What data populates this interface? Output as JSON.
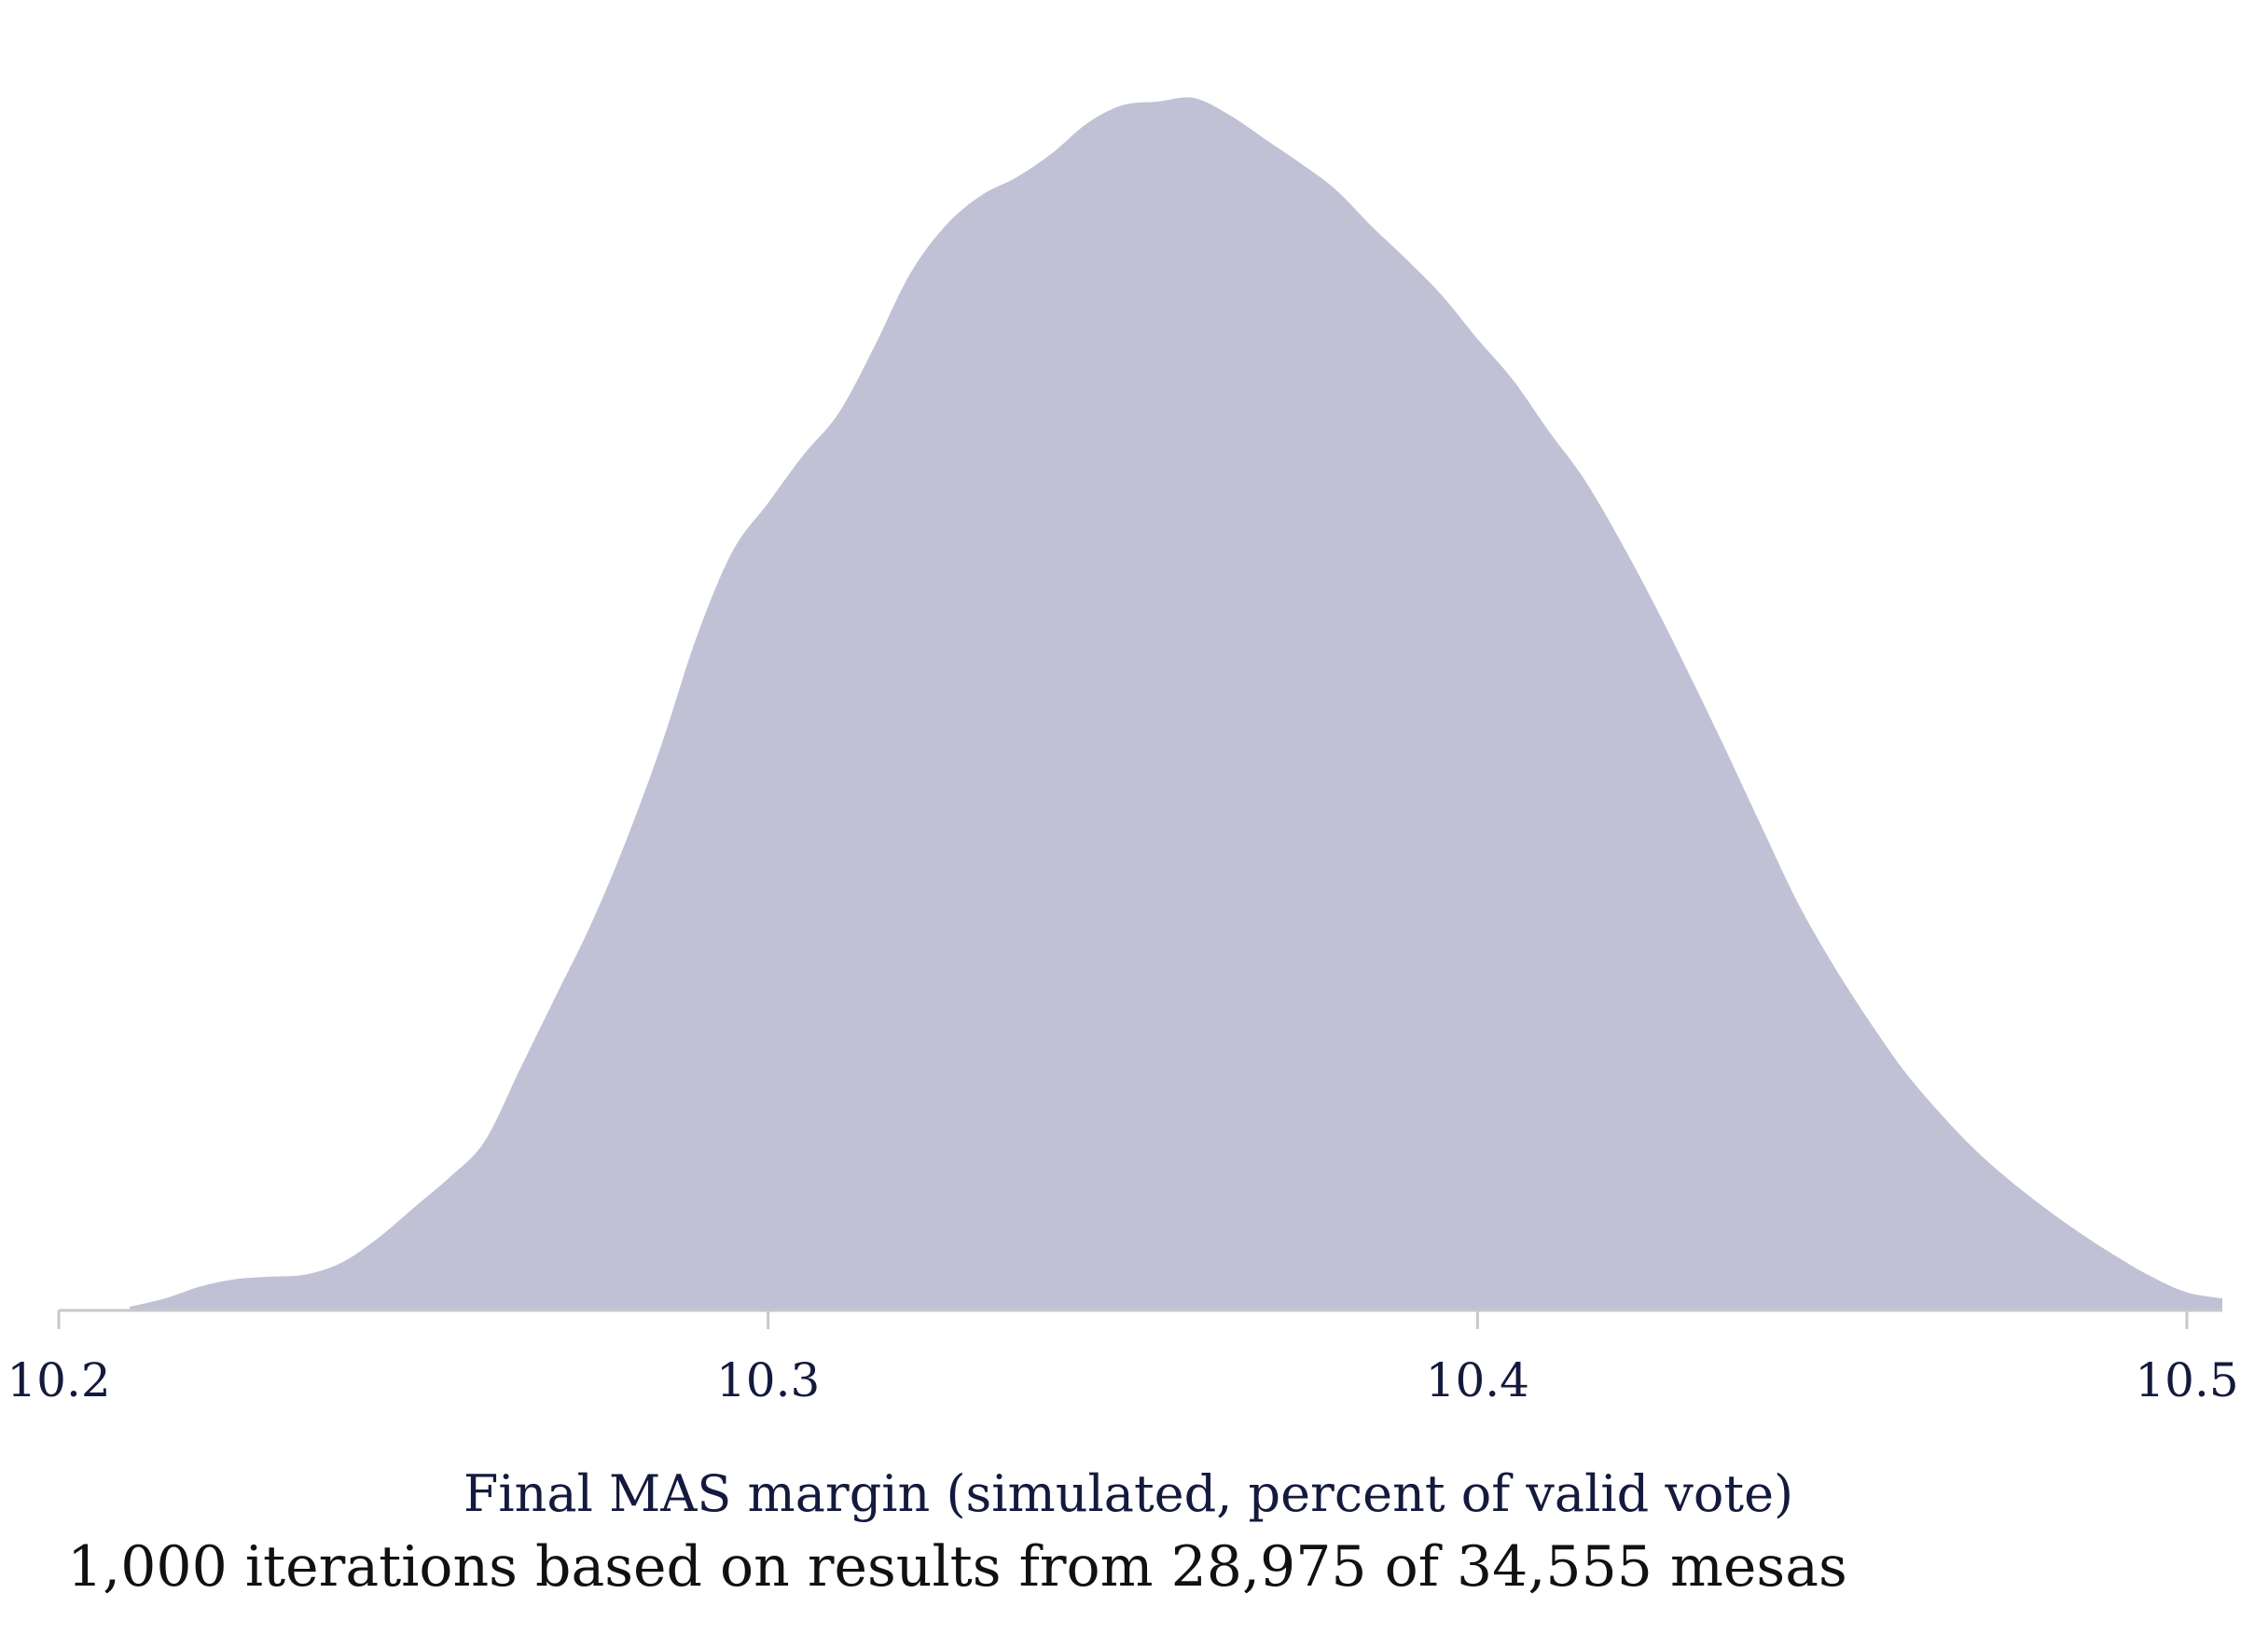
{
  "chart_data": {
    "type": "area",
    "xlabel": "Final MAS margin (simulated, percent of valid vote)",
    "ylabel": "",
    "caption": "1,000 iterations based on results from 28,975 of 34,555 mesas",
    "xlim": [
      10.2,
      10.505
    ],
    "ylim": [
      0,
      1
    ],
    "grid": false,
    "legend": "none",
    "fill_color": "#c0c1d5",
    "axis_color": "#c8c8c8",
    "text_color": "#141a3d",
    "x_ticks": [
      {
        "value": 10.2,
        "label": "10.2"
      },
      {
        "value": 10.3,
        "label": "10.3"
      },
      {
        "value": 10.4,
        "label": "10.4"
      },
      {
        "value": 10.5,
        "label": "10.5"
      }
    ],
    "x": [
      10.21,
      10.215,
      10.22,
      10.225,
      10.23,
      10.235,
      10.24,
      10.245,
      10.25,
      10.255,
      10.26,
      10.265,
      10.27,
      10.275,
      10.28,
      10.285,
      10.29,
      10.295,
      10.3,
      10.305,
      10.31,
      10.315,
      10.32,
      10.325,
      10.33,
      10.335,
      10.34,
      10.345,
      10.35,
      10.355,
      10.36,
      10.365,
      10.37,
      10.375,
      10.38,
      10.385,
      10.39,
      10.395,
      10.4,
      10.405,
      10.41,
      10.415,
      10.42,
      10.425,
      10.43,
      10.435,
      10.44,
      10.445,
      10.45,
      10.455,
      10.46,
      10.465,
      10.47,
      10.475,
      10.48,
      10.485,
      10.49,
      10.495,
      10.5,
      10.505
    ],
    "density": [
      0.003,
      0.01,
      0.02,
      0.026,
      0.028,
      0.03,
      0.04,
      0.06,
      0.085,
      0.11,
      0.14,
      0.2,
      0.26,
      0.32,
      0.39,
      0.47,
      0.56,
      0.63,
      0.67,
      0.71,
      0.745,
      0.8,
      0.86,
      0.9,
      0.925,
      0.94,
      0.96,
      0.985,
      1.0,
      1.003,
      1.006,
      0.992,
      0.972,
      0.952,
      0.93,
      0.9,
      0.872,
      0.842,
      0.806,
      0.772,
      0.73,
      0.69,
      0.64,
      0.585,
      0.526,
      0.465,
      0.402,
      0.34,
      0.288,
      0.242,
      0.2,
      0.165,
      0.134,
      0.108,
      0.085,
      0.064,
      0.045,
      0.028,
      0.015,
      0.01
    ]
  }
}
